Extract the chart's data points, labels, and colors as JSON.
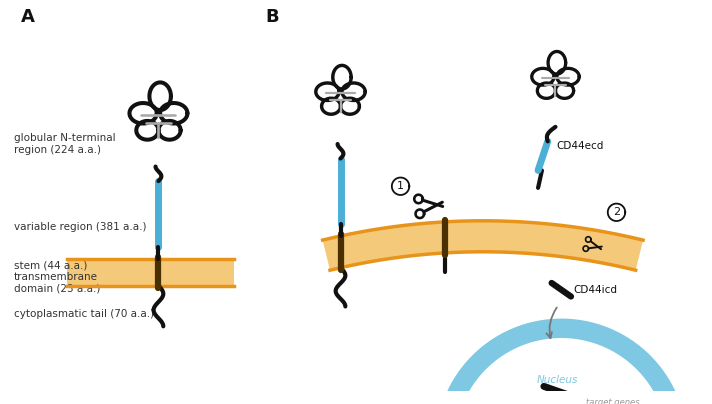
{
  "bg_color": "#ffffff",
  "label_A": "A",
  "label_B": "B",
  "color_black": "#111111",
  "color_blue": "#4BAFD6",
  "color_orange_dark": "#E8941A",
  "color_orange_light": "#F5C97A",
  "color_gray": "#aaaaaa",
  "color_nucleus_border": "#7EC8E3",
  "label_texts": [
    "globular N-terminal\nregion (224 a.a.)",
    "variable region (381 a.a.)",
    "stem (44 a.a.)",
    "transmembrane\ndomain (23 a.a.)",
    "cytoplasmatic tail (70 a.a.)"
  ]
}
